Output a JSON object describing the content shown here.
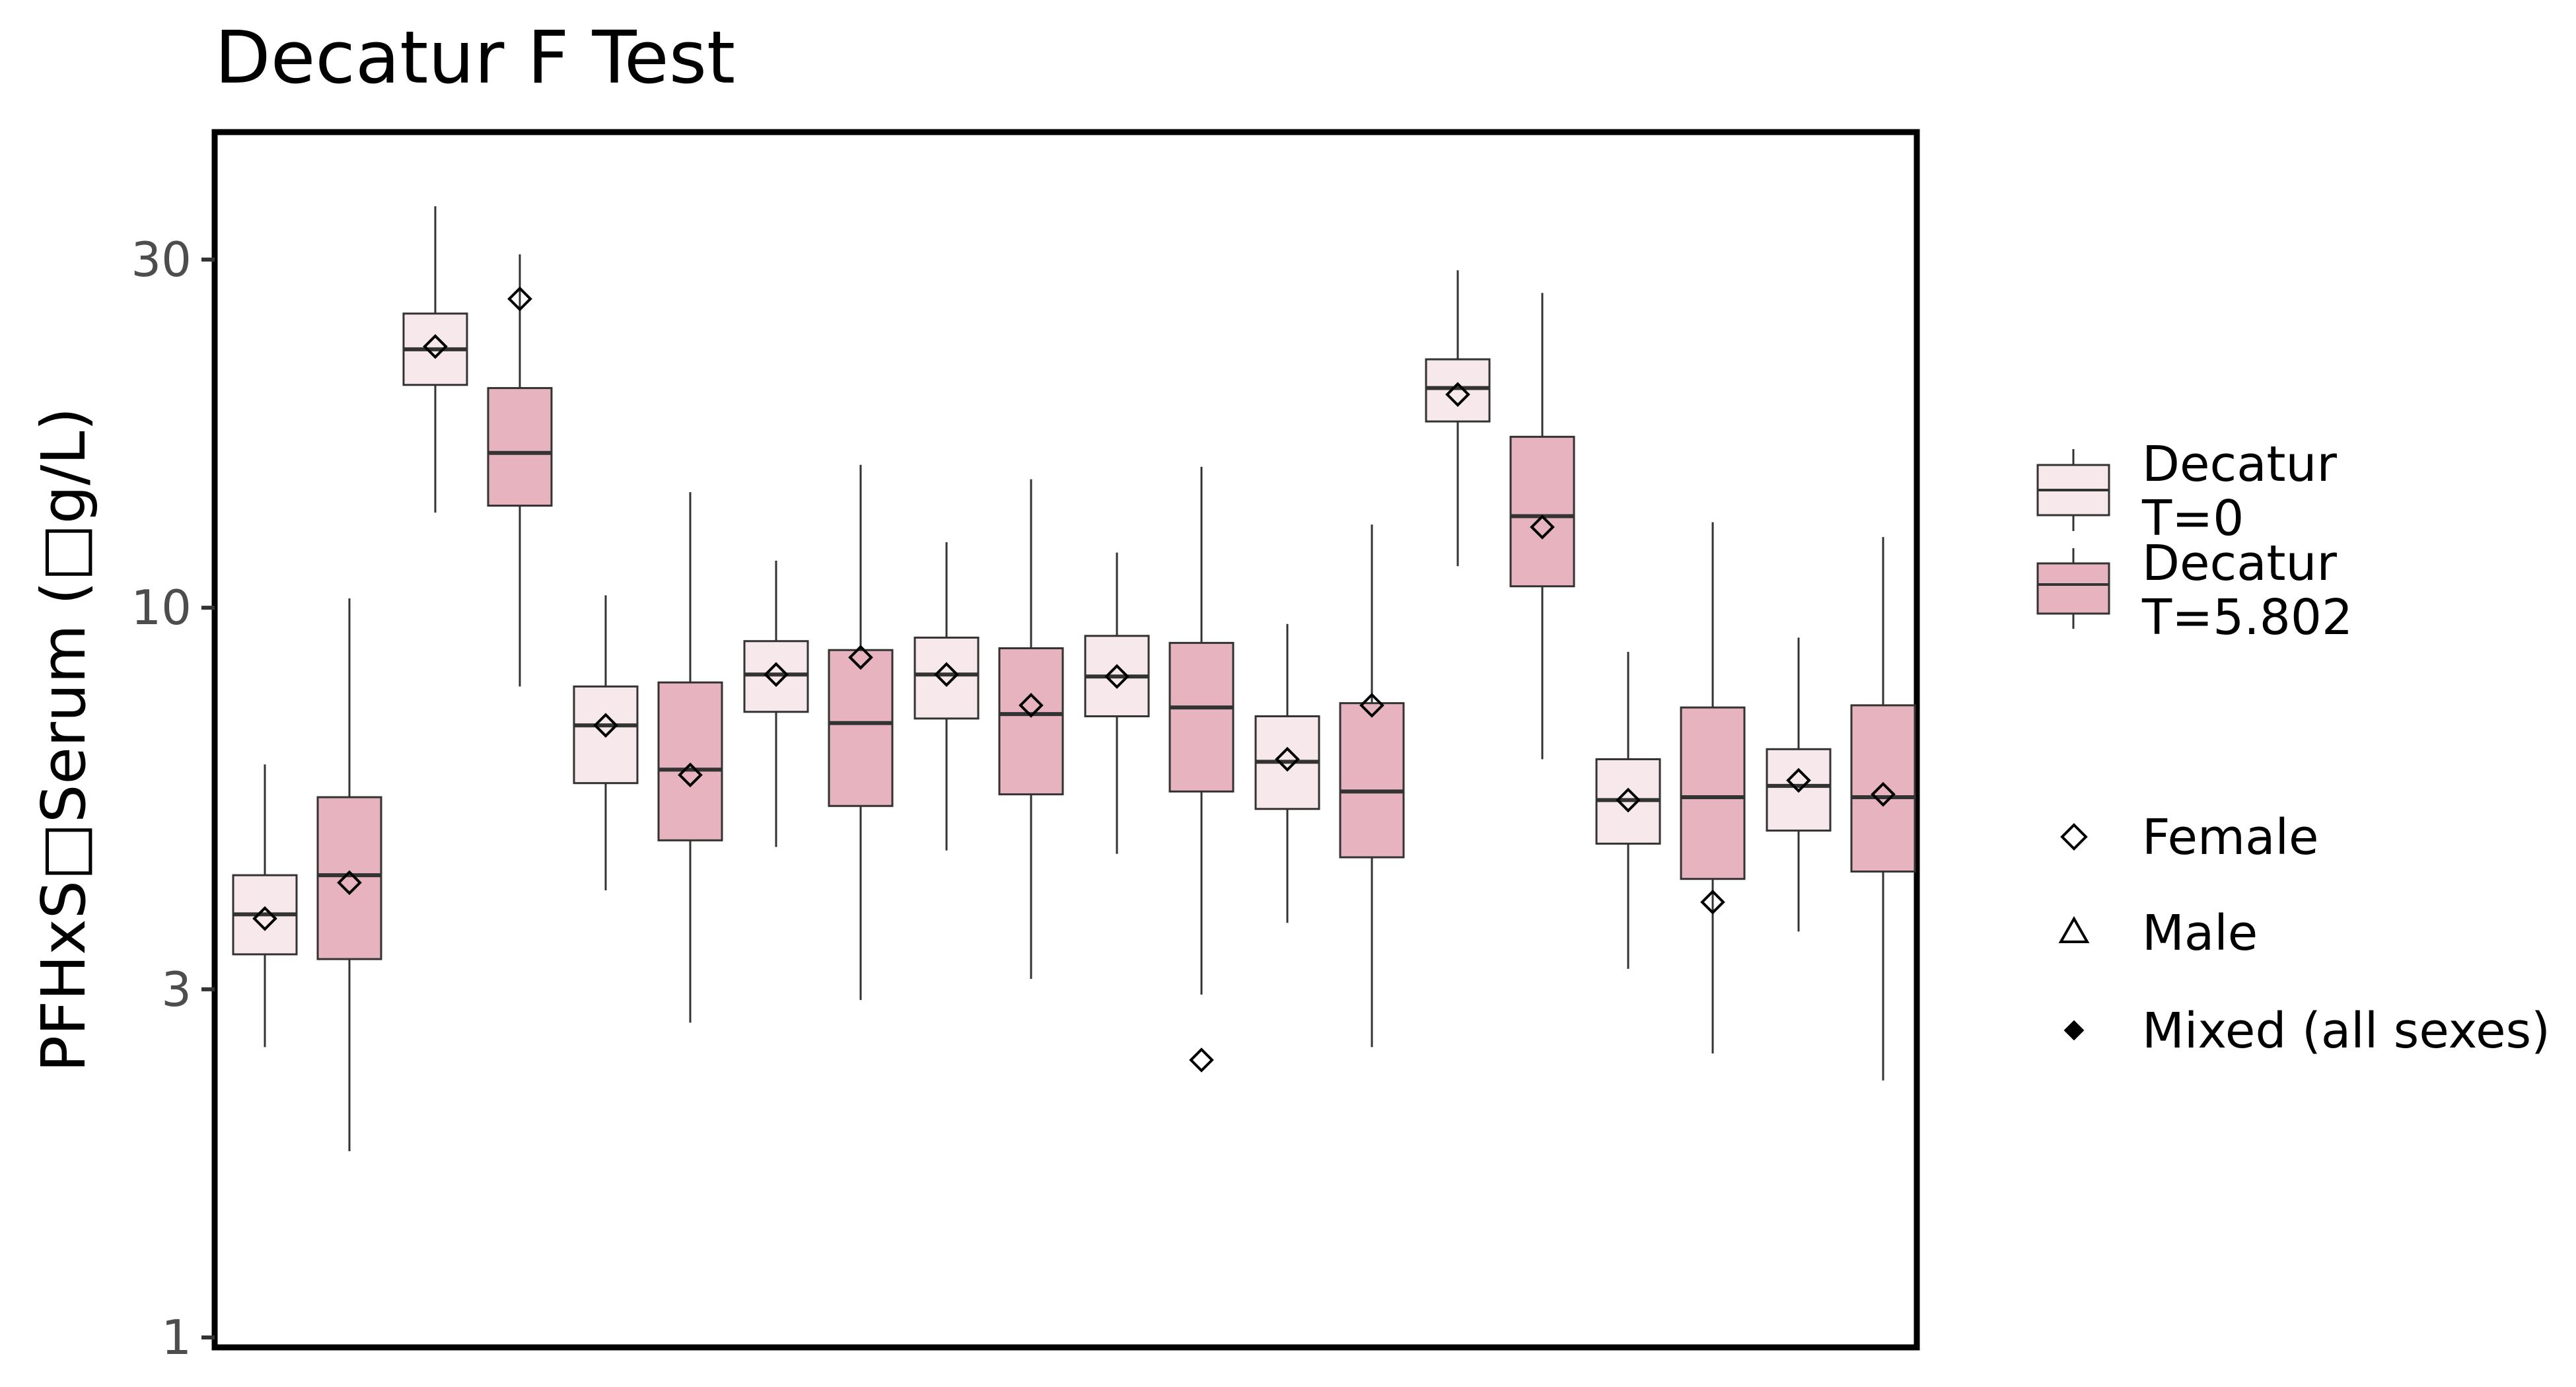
{
  "chart_data": {
    "type": "box",
    "title": "Decatur F Test",
    "xlabel": "",
    "ylabel": "PFHxS□Serum (□g/L)",
    "yscale": "log",
    "ylim": [
      1,
      45
    ],
    "yticks": [
      1,
      3,
      10,
      30
    ],
    "ytick_labels": [
      "1",
      "3",
      "10",
      "30"
    ],
    "grid": false,
    "legend_position": "right",
    "fill_legend": [
      {
        "label": "Decatur\nT=0",
        "color": "#f7e8eb"
      },
      {
        "label": "Decatur\nT=5.802",
        "color": "#e6b3be"
      }
    ],
    "shape_legend": [
      {
        "label": "Female",
        "marker": "diamond-open"
      },
      {
        "label": "Male",
        "marker": "triangle-open"
      },
      {
        "label": "Mixed (all sexes)",
        "marker": "diamond-filled"
      }
    ],
    "boxes": [
      {
        "group": 1,
        "series": "Decatur T=0",
        "whisker_low": 2.5,
        "q1": 3.35,
        "median": 3.8,
        "q3": 4.3,
        "whisker_high": 6.1,
        "mean": 3.75
      },
      {
        "group": 1,
        "series": "Decatur T=5.802",
        "whisker_low": 1.8,
        "q1": 3.3,
        "median": 4.3,
        "q3": 5.5,
        "whisker_high": 10.3,
        "mean": 4.2
      },
      {
        "group": 2,
        "series": "Decatur T=0",
        "whisker_low": 13.5,
        "q1": 20.2,
        "median": 22.6,
        "q3": 25.3,
        "whisker_high": 35.5,
        "mean": 22.8
      },
      {
        "group": 2,
        "series": "Decatur T=5.802",
        "whisker_low": 7.8,
        "q1": 13.8,
        "median": 16.3,
        "q3": 20.0,
        "whisker_high": 30.5,
        "mean": 26.5
      },
      {
        "group": 3,
        "series": "Decatur T=0",
        "whisker_low": 4.1,
        "q1": 5.75,
        "median": 6.9,
        "q3": 7.8,
        "whisker_high": 10.4,
        "mean": 6.9
      },
      {
        "group": 3,
        "series": "Decatur T=5.802",
        "whisker_low": 2.7,
        "q1": 4.8,
        "median": 6.0,
        "q3": 7.9,
        "whisker_high": 14.4,
        "mean": 5.9
      },
      {
        "group": 4,
        "series": "Decatur T=0",
        "whisker_low": 4.7,
        "q1": 7.2,
        "median": 8.1,
        "q3": 9.0,
        "whisker_high": 11.6,
        "mean": 8.1
      },
      {
        "group": 4,
        "series": "Decatur T=5.802",
        "whisker_low": 2.9,
        "q1": 5.35,
        "median": 6.95,
        "q3": 8.75,
        "whisker_high": 15.7,
        "mean": 8.55
      },
      {
        "group": 5,
        "series": "Decatur T=0",
        "whisker_low": 4.65,
        "q1": 7.05,
        "median": 8.1,
        "q3": 9.1,
        "whisker_high": 12.3,
        "mean": 8.1
      },
      {
        "group": 5,
        "series": "Decatur T=5.802",
        "whisker_low": 3.1,
        "q1": 5.55,
        "median": 7.15,
        "q3": 8.8,
        "whisker_high": 15.0,
        "mean": 7.35
      },
      {
        "group": 6,
        "series": "Decatur T=0",
        "whisker_low": 4.6,
        "q1": 7.1,
        "median": 8.05,
        "q3": 9.15,
        "whisker_high": 11.9,
        "mean": 8.05
      },
      {
        "group": 6,
        "series": "Decatur T=5.802",
        "whisker_low": 2.95,
        "q1": 5.6,
        "median": 7.3,
        "q3": 8.95,
        "whisker_high": 15.6,
        "mean": 2.4
      },
      {
        "group": 7,
        "series": "Decatur T=0",
        "whisker_low": 3.7,
        "q1": 5.3,
        "median": 6.15,
        "q3": 7.1,
        "whisker_high": 9.5,
        "mean": 6.2
      },
      {
        "group": 7,
        "series": "Decatur T=5.802",
        "whisker_low": 2.5,
        "q1": 4.55,
        "median": 5.6,
        "q3": 7.4,
        "whisker_high": 13.0,
        "mean": 7.35
      },
      {
        "group": 8,
        "series": "Decatur T=0",
        "whisker_low": 11.4,
        "q1": 18.0,
        "median": 20.0,
        "q3": 21.9,
        "whisker_high": 29.0,
        "mean": 19.6
      },
      {
        "group": 8,
        "series": "Decatur T=5.802",
        "whisker_low": 6.2,
        "q1": 10.7,
        "median": 13.35,
        "q3": 17.15,
        "whisker_high": 27.0,
        "mean": 12.9
      },
      {
        "group": 9,
        "series": "Decatur T=0",
        "whisker_low": 3.2,
        "q1": 4.75,
        "median": 5.45,
        "q3": 6.2,
        "whisker_high": 8.7,
        "mean": 5.45
      },
      {
        "group": 9,
        "series": "Decatur T=5.802",
        "whisker_low": 2.45,
        "q1": 4.25,
        "median": 5.5,
        "q3": 7.3,
        "whisker_high": 13.1,
        "mean": 3.95
      },
      {
        "group": 10,
        "series": "Decatur T=0",
        "whisker_low": 3.6,
        "q1": 4.95,
        "median": 5.7,
        "q3": 6.4,
        "whisker_high": 9.1,
        "mean": 5.8
      },
      {
        "group": 10,
        "series": "Decatur T=5.802",
        "whisker_low": 2.25,
        "q1": 4.35,
        "median": 5.5,
        "q3": 7.35,
        "whisker_high": 12.5,
        "mean": 5.55
      }
    ]
  }
}
